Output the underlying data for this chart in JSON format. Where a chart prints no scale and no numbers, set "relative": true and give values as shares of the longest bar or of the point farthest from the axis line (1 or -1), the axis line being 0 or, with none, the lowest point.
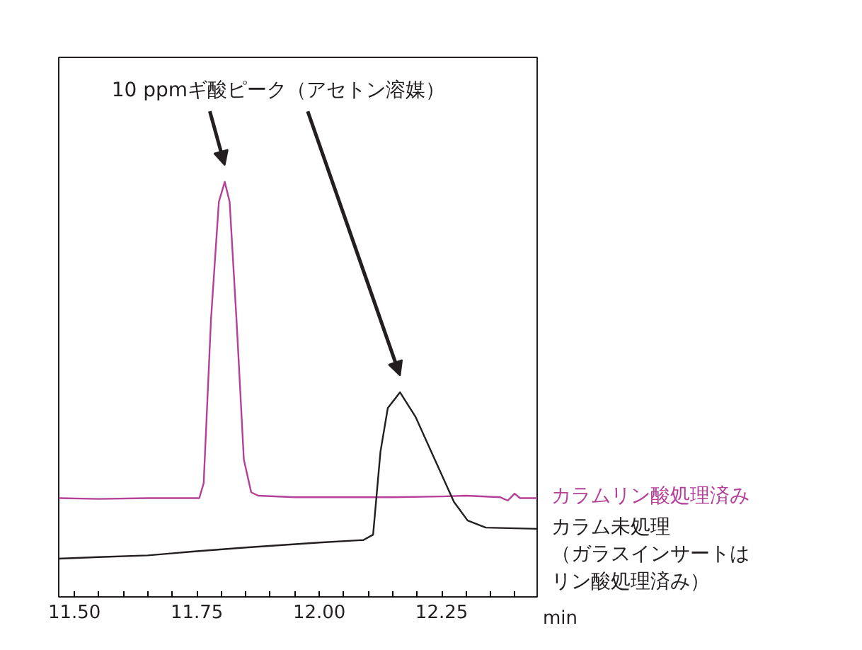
{
  "chart_data": {
    "type": "line",
    "relative": true,
    "xlabel": "min",
    "xlim": [
      11.468,
      12.445
    ],
    "xticks": [
      {
        "value": 11.5,
        "label": "11.50"
      },
      {
        "value": 11.55,
        "label": null
      },
      {
        "value": 11.6,
        "label": null
      },
      {
        "value": 11.65,
        "label": null
      },
      {
        "value": 11.7,
        "label": null
      },
      {
        "value": 11.75,
        "label": "11.75"
      },
      {
        "value": 11.8,
        "label": null
      },
      {
        "value": 11.85,
        "label": null
      },
      {
        "value": 11.9,
        "label": null
      },
      {
        "value": 11.95,
        "label": null
      },
      {
        "value": 12.0,
        "label": "12.00"
      },
      {
        "value": 12.05,
        "label": null
      },
      {
        "value": 12.1,
        "label": null
      },
      {
        "value": 12.15,
        "label": null
      },
      {
        "value": 12.2,
        "label": null
      },
      {
        "value": 12.25,
        "label": "12.25"
      },
      {
        "value": 12.3,
        "label": null
      },
      {
        "value": 12.35,
        "label": null
      },
      {
        "value": 12.4,
        "label": null
      }
    ],
    "tick_labels": "x",
    "grid": false,
    "annotations": [
      "10 ppmギ酸ピーク（アセトン溶媒）"
    ],
    "series": [
      {
        "name": "カラムリン酸処理済み",
        "color": "#b5409a",
        "x": [
          11.468,
          11.55,
          11.65,
          11.755,
          11.764,
          11.779,
          11.795,
          11.807,
          11.817,
          11.832,
          11.846,
          11.861,
          11.875,
          11.95,
          12.05,
          12.15,
          12.25,
          12.3,
          12.37,
          12.385,
          12.399,
          12.41,
          12.445
        ],
        "values": [
          0.238,
          0.236,
          0.238,
          0.238,
          0.274,
          0.67,
          0.952,
          1.0,
          0.952,
          0.647,
          0.331,
          0.252,
          0.244,
          0.24,
          0.24,
          0.24,
          0.242,
          0.244,
          0.24,
          0.232,
          0.249,
          0.238,
          0.238
        ]
      },
      {
        "name": "カラム未処理（ガラスインサートはリン酸処理済み）",
        "color": "#231f20",
        "x": [
          11.468,
          11.55,
          11.65,
          11.75,
          11.85,
          12.0,
          12.09,
          12.11,
          12.125,
          12.14,
          12.165,
          12.197,
          12.236,
          12.275,
          12.303,
          12.34,
          12.445
        ],
        "values": [
          0.092,
          0.096,
          0.1,
          0.11,
          0.119,
          0.131,
          0.137,
          0.15,
          0.35,
          0.455,
          0.493,
          0.433,
          0.331,
          0.229,
          0.184,
          0.167,
          0.164
        ]
      }
    ]
  }
}
